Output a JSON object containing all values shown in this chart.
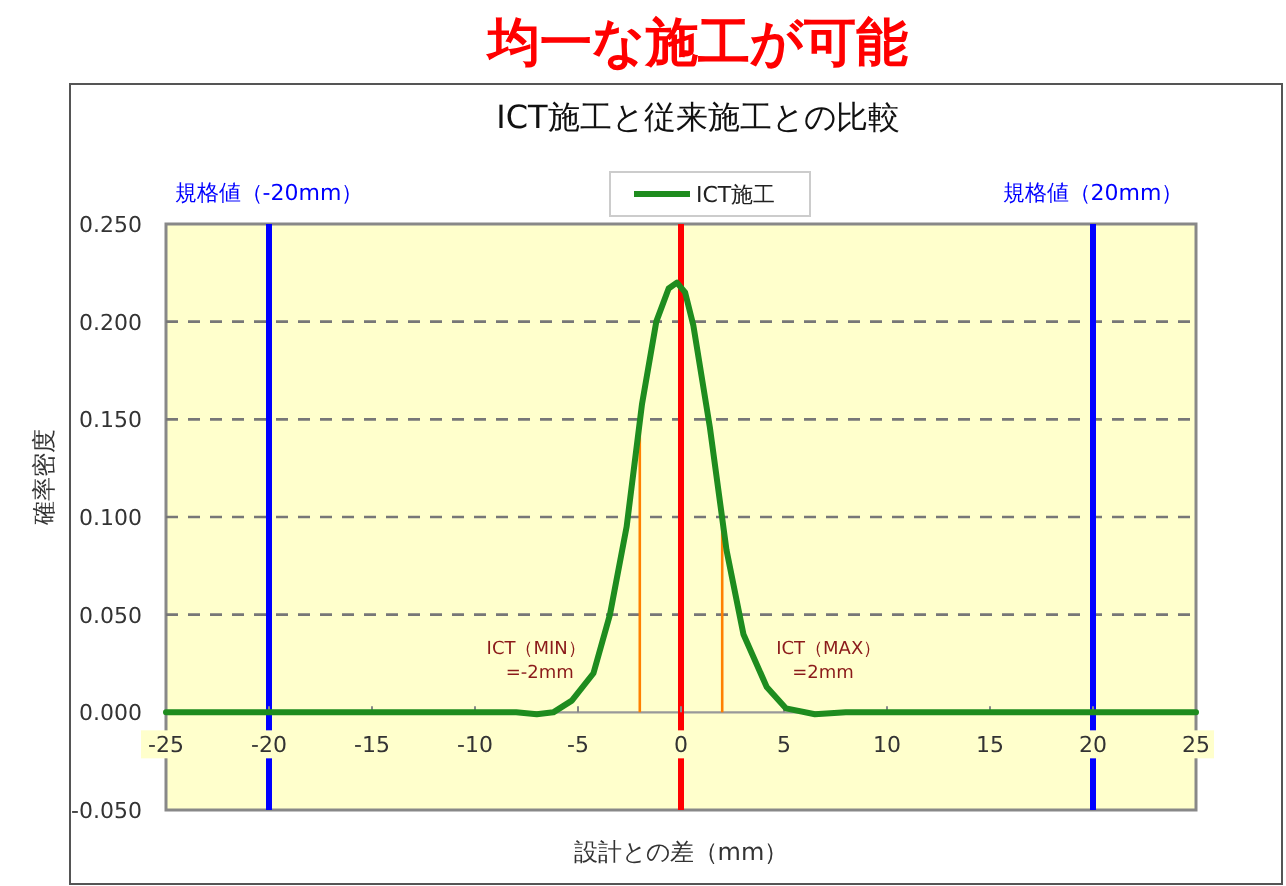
{
  "chart_data": {
    "type": "line",
    "title": "均一な施工が可能",
    "subtitle": "ICT施工と従来施工との比較",
    "xlabel": "設計との差（mm）",
    "ylabel": "確率密度",
    "x": [
      -25,
      -15,
      -8,
      -7,
      -6.2,
      -5.3,
      -4.25,
      -3.45,
      -2.64,
      -1.89,
      -1.2,
      -0.6,
      -0.2,
      0.2,
      0.6,
      1.4,
      2.21,
      3.03,
      4.16,
      5.1,
      6.5,
      8,
      15,
      25
    ],
    "series": [
      {
        "name": "ICT施工",
        "color": "#1e8c1e",
        "values": [
          0,
          0,
          0,
          -0.001,
          0,
          0.006,
          0.02,
          0.05,
          0.095,
          0.158,
          0.2,
          0.217,
          0.22,
          0.215,
          0.198,
          0.146,
          0.083,
          0.04,
          0.013,
          0.002,
          -0.001,
          0,
          0,
          0
        ]
      }
    ],
    "xlim": [
      -25,
      25
    ],
    "xticks": [
      -25,
      -20,
      -15,
      -10,
      -5,
      0,
      5,
      10,
      15,
      20,
      25
    ],
    "ylim": [
      -0.05,
      0.25
    ],
    "yticks": [
      {
        "value": -0.05,
        "label": "-0.050"
      },
      {
        "value": 0,
        "label": "0.000"
      },
      {
        "value": 0.05,
        "label": "0.050"
      },
      {
        "value": 0.1,
        "label": "0.100"
      },
      {
        "value": 0.15,
        "label": "0.150"
      },
      {
        "value": 0.2,
        "label": "0.200"
      },
      {
        "value": 0.25,
        "label": "0.250"
      }
    ],
    "grid": "y",
    "legend": "top",
    "marker": "none",
    "line_style": "solid",
    "ref_lines": [
      {
        "axis": "x",
        "value": -20,
        "label": "規格値（-20mm）",
        "color": "#0000ff"
      },
      {
        "axis": "x",
        "value": 20,
        "label": "規格値（20mm）",
        "color": "#0000ff"
      },
      {
        "axis": "x",
        "value": 0,
        "color": "#ff0000"
      },
      {
        "axis": "x",
        "value": -2,
        "label": "ICT（MIN）=-2mm",
        "color": "#ff8000"
      },
      {
        "axis": "x",
        "value": 2,
        "label": "ICT（MAX）=2mm",
        "color": "#ff8000"
      }
    ]
  }
}
